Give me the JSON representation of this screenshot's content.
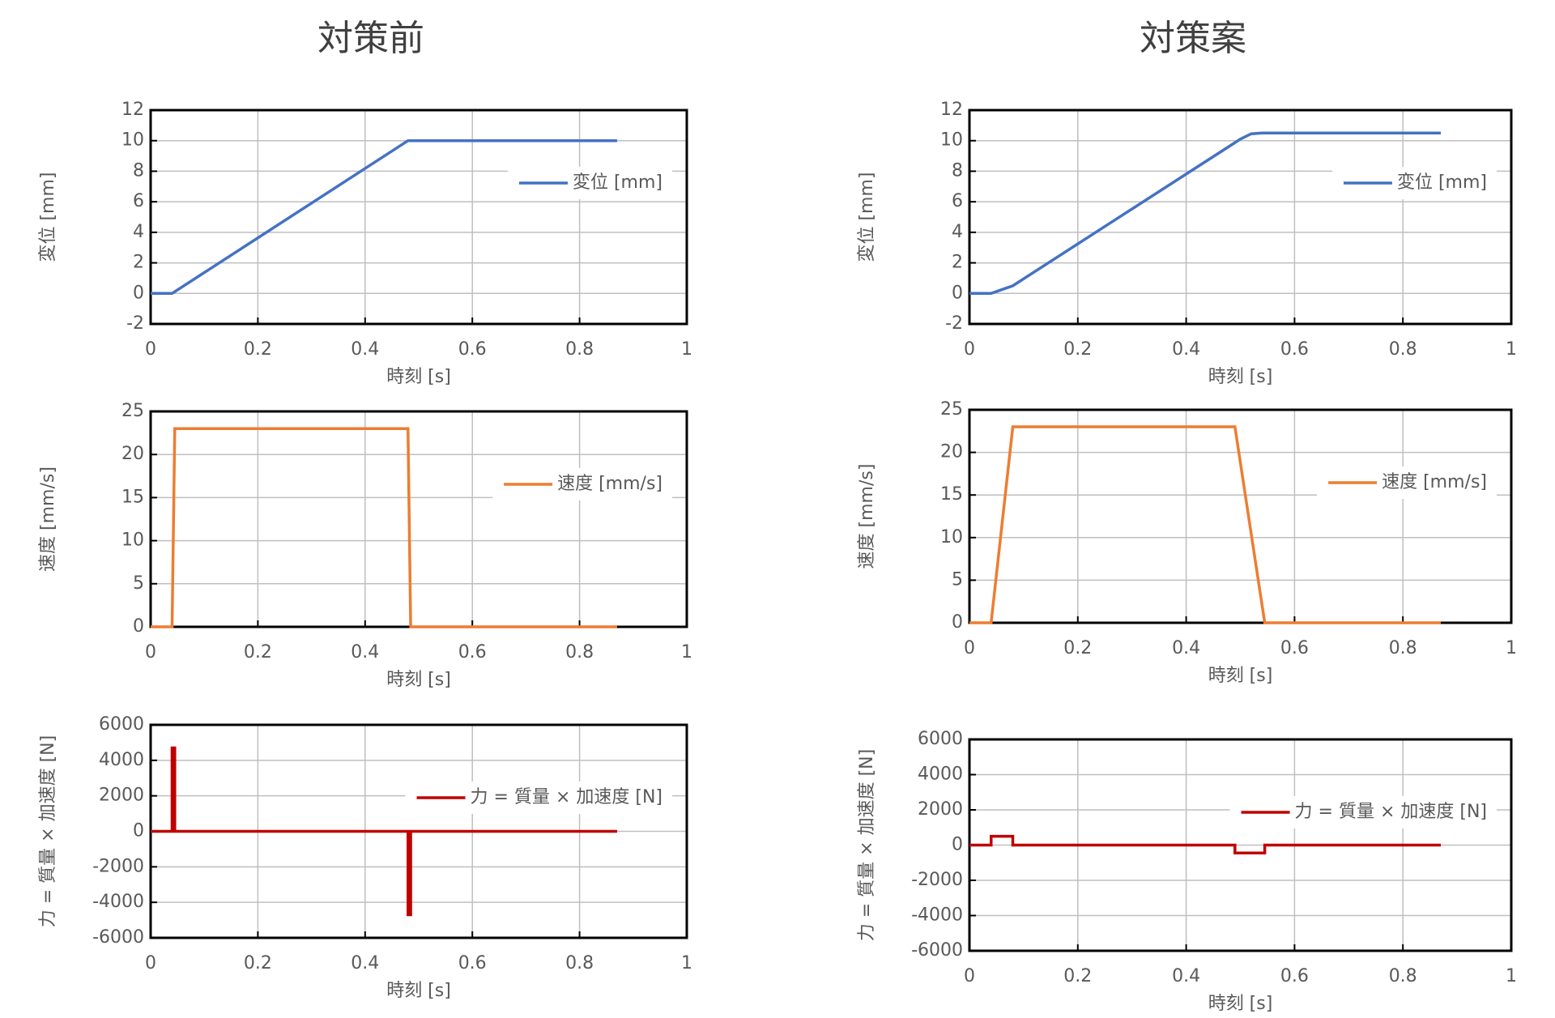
{
  "column_titles": [
    "対策前",
    "対策案"
  ],
  "chart_data": [
    {
      "type": "line",
      "x_label": "時刻 [s]",
      "y_label": "変位 [mm]",
      "x": [
        0,
        0.04,
        0.48,
        0.87
      ],
      "series": [
        {
          "name": "変位 [mm]",
          "color": "#4472c4",
          "values": [
            0,
            0,
            10,
            10
          ]
        }
      ],
      "xlim": [
        0,
        1
      ],
      "xticks": [
        0,
        0.2,
        0.4,
        0.6,
        0.8,
        1
      ],
      "ylim": [
        -2,
        12
      ],
      "yticks": [
        -2,
        0,
        2,
        4,
        6,
        8,
        10,
        12
      ],
      "grid": true,
      "legend": "upper right"
    },
    {
      "type": "line",
      "x_label": "時刻 [s]",
      "y_label": "速度 [mm/s]",
      "x": [
        0,
        0.04,
        0.045,
        0.48,
        0.485,
        0.87
      ],
      "series": [
        {
          "name": "速度 [mm/s]",
          "color": "#ed7d31",
          "values": [
            0,
            0,
            23,
            23,
            0,
            0
          ]
        }
      ],
      "xlim": [
        0,
        1
      ],
      "xticks": [
        0,
        0.2,
        0.4,
        0.6,
        0.8,
        1
      ],
      "ylim": [
        0,
        25
      ],
      "yticks": [
        0,
        5,
        10,
        15,
        20,
        25
      ],
      "grid": true,
      "legend": "upper right"
    },
    {
      "type": "line",
      "x_label": "時刻 [s]",
      "y_label": "力 = 質量 × 加速度 [N]",
      "x": [
        0,
        0.04,
        0.04,
        0.045,
        0.045,
        0.48,
        0.48,
        0.485,
        0.485,
        0.87
      ],
      "series": [
        {
          "name": "力 = 質量 × 加速度 [N]",
          "color": "#c00000",
          "values": [
            0,
            0,
            4700,
            4700,
            0,
            0,
            -4700,
            -4700,
            0,
            0
          ]
        }
      ],
      "xlim": [
        0,
        1
      ],
      "xticks": [
        0,
        0.2,
        0.4,
        0.6,
        0.8,
        1
      ],
      "ylim": [
        -6000,
        6000
      ],
      "yticks": [
        -6000,
        -4000,
        -2000,
        0,
        2000,
        4000,
        6000
      ],
      "grid": true,
      "legend": "upper right"
    },
    {
      "type": "line",
      "x_label": "時刻 [s]",
      "y_label": "変位 [mm]",
      "x": [
        0,
        0.04,
        0.06,
        0.08,
        0.5,
        0.52,
        0.54,
        0.87
      ],
      "series": [
        {
          "name": "変位 [mm]",
          "color": "#4472c4",
          "values": [
            0,
            0,
            0.25,
            0.5,
            10.1,
            10.45,
            10.5,
            10.5
          ]
        }
      ],
      "xlim": [
        0,
        1
      ],
      "xticks": [
        0,
        0.2,
        0.4,
        0.6,
        0.8,
        1
      ],
      "ylim": [
        -2,
        12
      ],
      "yticks": [
        -2,
        0,
        2,
        4,
        6,
        8,
        10,
        12
      ],
      "grid": true,
      "legend": "upper right"
    },
    {
      "type": "line",
      "x_label": "時刻 [s]",
      "y_label": "速度 [mm/s]",
      "x": [
        0,
        0.04,
        0.08,
        0.49,
        0.545,
        0.87
      ],
      "series": [
        {
          "name": "速度 [mm/s]",
          "color": "#ed7d31",
          "values": [
            0,
            0,
            23,
            23,
            0,
            0
          ]
        }
      ],
      "xlim": [
        0,
        1
      ],
      "xticks": [
        0,
        0.2,
        0.4,
        0.6,
        0.8,
        1
      ],
      "ylim": [
        0,
        25
      ],
      "yticks": [
        0,
        5,
        10,
        15,
        20,
        25
      ],
      "grid": true,
      "legend": "upper right"
    },
    {
      "type": "line",
      "x_label": "時刻 [s]",
      "y_label": "力 = 質量 × 加速度 [N]",
      "x": [
        0,
        0.04,
        0.04,
        0.08,
        0.08,
        0.49,
        0.49,
        0.545,
        0.545,
        0.87
      ],
      "series": [
        {
          "name": "力 = 質量 × 加速度 [N]",
          "color": "#c00000",
          "values": [
            0,
            0,
            500,
            500,
            0,
            0,
            -450,
            -450,
            0,
            0
          ]
        }
      ],
      "xlim": [
        0,
        1
      ],
      "xticks": [
        0,
        0.2,
        0.4,
        0.6,
        0.8,
        1
      ],
      "ylim": [
        -6000,
        6000
      ],
      "yticks": [
        -6000,
        -4000,
        -2000,
        0,
        2000,
        4000,
        6000
      ],
      "grid": true,
      "legend": "upper right"
    }
  ]
}
